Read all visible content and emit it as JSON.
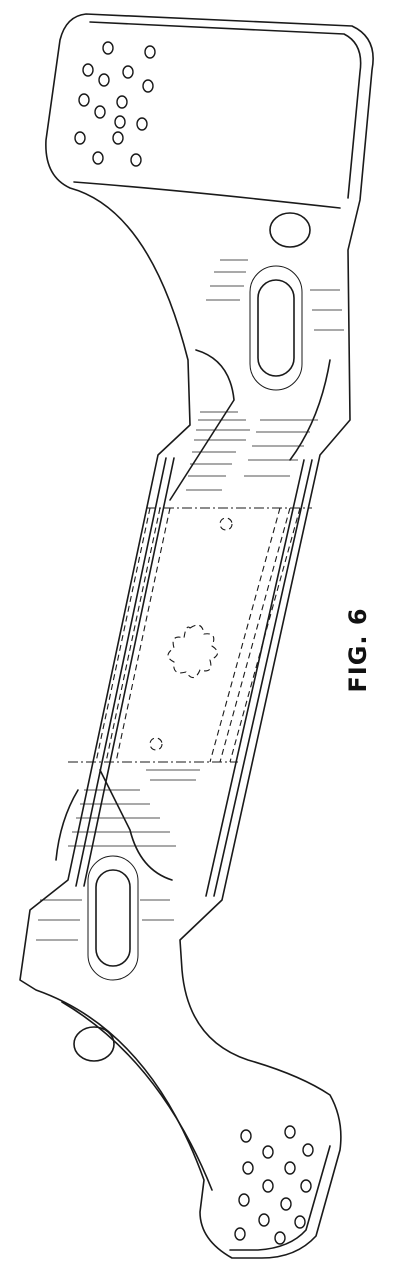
{
  "figure": {
    "label": "FIG. 6"
  },
  "style": {
    "ink": "#1a1a1a",
    "paper": "#ffffff"
  }
}
